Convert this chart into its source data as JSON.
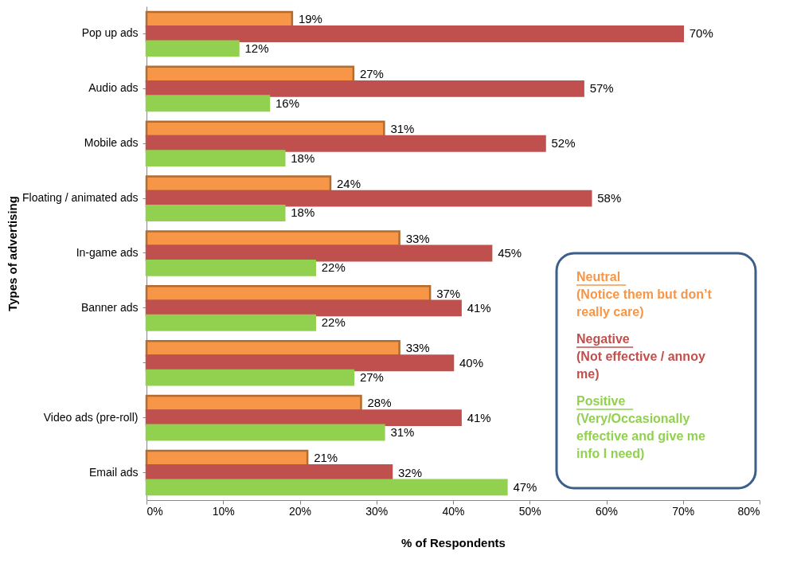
{
  "chart_data": {
    "type": "bar",
    "orientation": "horizontal",
    "categories": [
      "Pop up ads",
      "Audio ads",
      "Mobile ads",
      "Floating / animated ads",
      "In-game ads",
      "Banner ads",
      null,
      "Video ads (pre-roll)",
      "Email ads"
    ],
    "series": [
      {
        "name": "Neutral (Notice them but don’t really care)",
        "color": "#f79646",
        "values": [
          19,
          27,
          31,
          24,
          33,
          37,
          33,
          28,
          21
        ],
        "value_labels": [
          "19%",
          "27%",
          "31%",
          "24%",
          "33%",
          "37%",
          "33%",
          "28%",
          "21%"
        ]
      },
      {
        "name": "Negative (Not effective / annoy me)",
        "color": "#c0504d",
        "values": [
          70,
          57,
          52,
          58,
          45,
          41,
          40,
          41,
          32
        ],
        "value_labels": [
          "70%",
          "57%",
          "52%",
          "58%",
          "45%",
          "41%",
          "40%",
          "41%",
          "32%"
        ]
      },
      {
        "name": "Positive (Very/Occasionally effective and give me info I need)",
        "color": "#92d050",
        "values": [
          12,
          16,
          18,
          18,
          22,
          22,
          27,
          31,
          47
        ],
        "value_labels": [
          "12%",
          "16%",
          "18%",
          "18%",
          "22%",
          "22%",
          "27%",
          "31%",
          "47%"
        ]
      }
    ],
    "xlim": [
      0,
      80
    ],
    "xticks": [
      {
        "value": 0,
        "label": "0%"
      },
      {
        "value": 10,
        "label": "10%"
      },
      {
        "value": 20,
        "label": "20%"
      },
      {
        "value": 30,
        "label": "30%"
      },
      {
        "value": 40,
        "label": "40%"
      },
      {
        "value": 50,
        "label": "50%"
      },
      {
        "value": 60,
        "label": "60%"
      },
      {
        "value": 70,
        "label": "70%"
      },
      {
        "value": 80,
        "label": "80%"
      }
    ],
    "xlabel": "% of Respondents",
    "ylabel": "Types of advertising",
    "legend": "bottom right",
    "grid": false
  }
}
